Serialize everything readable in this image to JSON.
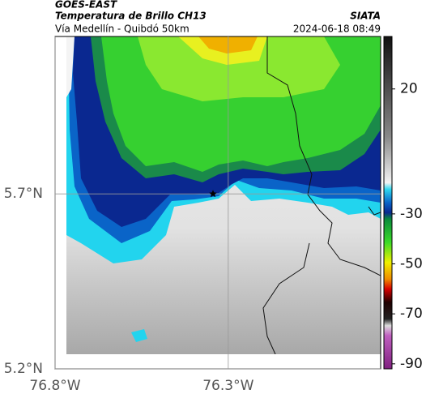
{
  "header": {
    "title": "GOES-EAST",
    "subtitle": "Temperatura de Brillo CH13",
    "source": "SIATA",
    "route": "Vía Medellín - Quibdó 50km",
    "datetime": "2024-06-18 08:49"
  },
  "axes": {
    "xlim": [
      -76.8,
      -75.86
    ],
    "ylim": [
      5.2,
      6.15
    ],
    "lon_ticks": [
      {
        "value": -76.8,
        "label": "76.8°W"
      },
      {
        "value": -76.3,
        "label": "76.3°W"
      }
    ],
    "lat_ticks": [
      {
        "value": 5.2,
        "label": "5.2°N"
      },
      {
        "value": 5.7,
        "label": "5.7°N"
      }
    ]
  },
  "marker": {
    "lon": -76.344,
    "lat": 5.7
  },
  "colorbar": {
    "lim": [
      -92,
      41
    ],
    "ticks": [
      20,
      -30,
      -50,
      -70,
      -90
    ]
  }
}
